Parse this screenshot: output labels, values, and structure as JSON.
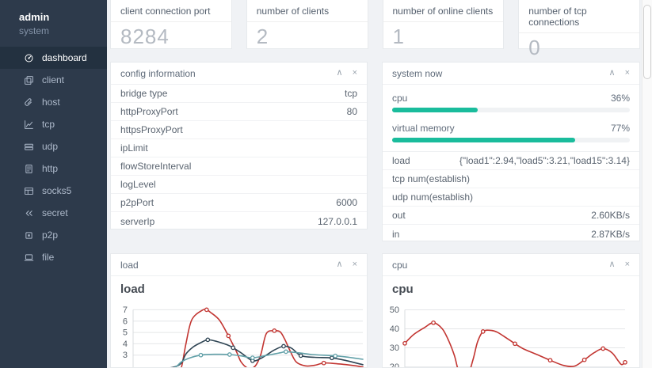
{
  "sidebar": {
    "user": {
      "name": "admin",
      "role": "system"
    },
    "items": [
      {
        "label": "dashboard",
        "icon": "dashboard-icon",
        "active": true
      },
      {
        "label": "client",
        "icon": "client-icon",
        "active": false
      },
      {
        "label": "host",
        "icon": "host-icon",
        "active": false
      },
      {
        "label": "tcp",
        "icon": "tcp-icon",
        "active": false
      },
      {
        "label": "udp",
        "icon": "udp-icon",
        "active": false
      },
      {
        "label": "http",
        "icon": "http-icon",
        "active": false
      },
      {
        "label": "socks5",
        "icon": "socks5-icon",
        "active": false
      },
      {
        "label": "secret",
        "icon": "secret-icon",
        "active": false
      },
      {
        "label": "p2p",
        "icon": "p2p-icon",
        "active": false
      },
      {
        "label": "file",
        "icon": "file-icon",
        "active": false
      }
    ]
  },
  "stat_cards": [
    {
      "label": "client connection port",
      "value": "8284"
    },
    {
      "label": "number of clients",
      "value": "2"
    },
    {
      "label": "number of online clients",
      "value": "1"
    },
    {
      "label": "number of tcp connections",
      "value": "0"
    }
  ],
  "icons": {
    "collapse": "∧",
    "close": "×"
  },
  "colors": {
    "accent_green": "#1abc9c",
    "chart_red": "#c23531",
    "chart_navy": "#2f4554",
    "chart_teal": "#61a0a8",
    "sidebar_bg": "#2d3a4b"
  },
  "panels": {
    "config": {
      "title": "config information",
      "rows": [
        {
          "label": "bridge type",
          "value": "tcp"
        },
        {
          "label": "httpProxyPort",
          "value": "80"
        },
        {
          "label": "httpsProxyPort",
          "value": ""
        },
        {
          "label": "ipLimit",
          "value": ""
        },
        {
          "label": "flowStoreInterval",
          "value": ""
        },
        {
          "label": "logLevel",
          "value": ""
        },
        {
          "label": "p2pPort",
          "value": "6000"
        },
        {
          "label": "serverIp",
          "value": "127.0.0.1"
        }
      ]
    },
    "system": {
      "title": "system now",
      "gauges": [
        {
          "label": "cpu",
          "percent": 36,
          "display": "36%"
        },
        {
          "label": "virtual memory",
          "percent": 77,
          "display": "77%"
        }
      ],
      "rows": [
        {
          "label": "load",
          "value": "{\"load1\":2.94,\"load5\":3.21,\"load15\":3.14}"
        },
        {
          "label": "tcp num(establish)",
          "value": ""
        },
        {
          "label": "udp num(establish)",
          "value": ""
        },
        {
          "label": "out",
          "value": "2.60KB/s"
        },
        {
          "label": "in",
          "value": "2.87KB/s"
        }
      ]
    },
    "load": {
      "title": "load",
      "chart_title": "load"
    },
    "cpu": {
      "title": "cpu",
      "chart_title": "cpu"
    }
  },
  "chart_data": [
    {
      "id": "load",
      "type": "line",
      "title": "load",
      "xlabel": "",
      "ylabel": "",
      "x_unit": "fraction-of-plot-width (x tick labels cut off below viewport)",
      "ylim": [
        1.79,
        7.52
      ],
      "yticks": [
        3,
        4,
        5,
        6,
        7
      ],
      "plot": [
        28,
        318
      ],
      "grid": true,
      "legend_visible": false,
      "series": [
        {
          "name": "load1",
          "color": "#c23531",
          "points": [
            [
              0,
              1.2
            ],
            [
              0.14,
              1.3
            ],
            [
              0.19,
              1.6
            ],
            [
              0.21,
              1.9
            ],
            [
              0.23,
              4.0
            ],
            [
              0.255,
              6.1
            ],
            [
              0.3,
              6.95
            ],
            [
              0.32,
              7.0
            ],
            [
              0.335,
              6.8
            ],
            [
              0.375,
              6.1
            ],
            [
              0.415,
              4.7
            ],
            [
              0.45,
              3.3
            ],
            [
              0.47,
              2.4
            ],
            [
              0.5,
              1.85
            ],
            [
              0.53,
              2.0
            ],
            [
              0.555,
              3.0
            ],
            [
              0.58,
              4.9
            ],
            [
              0.615,
              5.15
            ],
            [
              0.64,
              5.05
            ],
            [
              0.66,
              4.4
            ],
            [
              0.685,
              3.3
            ],
            [
              0.71,
              2.4
            ],
            [
              0.75,
              2.05
            ],
            [
              0.79,
              2.1
            ],
            [
              0.83,
              2.3
            ],
            [
              0.88,
              2.25
            ],
            [
              0.93,
              2.15
            ],
            [
              0.97,
              2.05
            ],
            [
              1,
              1.95
            ]
          ],
          "markers": [
            [
              0.32,
              7.0
            ],
            [
              0.415,
              4.7
            ],
            [
              0.615,
              5.15
            ],
            [
              0.83,
              2.3
            ]
          ]
        },
        {
          "name": "load5",
          "color": "#2f4554",
          "points": [
            [
              0,
              1.75
            ],
            [
              0.12,
              1.8
            ],
            [
              0.18,
              1.95
            ],
            [
              0.21,
              2.3
            ],
            [
              0.23,
              3.1
            ],
            [
              0.26,
              3.7
            ],
            [
              0.295,
              4.1
            ],
            [
              0.325,
              4.35
            ],
            [
              0.365,
              4.2
            ],
            [
              0.41,
              3.9
            ],
            [
              0.435,
              3.65
            ],
            [
              0.47,
              3.2
            ],
            [
              0.52,
              2.5
            ],
            [
              0.555,
              2.7
            ],
            [
              0.58,
              3.0
            ],
            [
              0.615,
              3.45
            ],
            [
              0.655,
              3.78
            ],
            [
              0.69,
              3.6
            ],
            [
              0.73,
              2.95
            ],
            [
              0.79,
              2.8
            ],
            [
              0.865,
              2.75
            ],
            [
              0.93,
              2.5
            ],
            [
              1,
              2.15
            ]
          ],
          "markers": [
            [
              0.325,
              4.35
            ],
            [
              0.435,
              3.65
            ],
            [
              0.52,
              2.5
            ],
            [
              0.655,
              3.78
            ],
            [
              0.73,
              2.95
            ],
            [
              0.865,
              2.75
            ]
          ]
        },
        {
          "name": "load15",
          "color": "#61a0a8",
          "points": [
            [
              0,
              1.7
            ],
            [
              0.12,
              1.75
            ],
            [
              0.18,
              1.9
            ],
            [
              0.21,
              2.4
            ],
            [
              0.24,
              2.7
            ],
            [
              0.295,
              3.0
            ],
            [
              0.36,
              3.07
            ],
            [
              0.42,
              3.05
            ],
            [
              0.47,
              2.93
            ],
            [
              0.52,
              2.76
            ],
            [
              0.58,
              2.97
            ],
            [
              0.64,
              3.2
            ],
            [
              0.665,
              3.3
            ],
            [
              0.72,
              3.2
            ],
            [
              0.78,
              3.05
            ],
            [
              0.88,
              2.93
            ],
            [
              0.94,
              2.8
            ],
            [
              1,
              2.63
            ]
          ],
          "markers": [
            [
              0.295,
              3.0
            ],
            [
              0.42,
              3.05
            ],
            [
              0.52,
              2.76
            ],
            [
              0.665,
              3.3
            ],
            [
              0.88,
              2.93
            ]
          ]
        }
      ]
    },
    {
      "id": "cpu",
      "type": "line",
      "title": "cpu",
      "xlabel": "",
      "ylabel": "",
      "x_unit": "fraction-of-plot-width (x tick labels cut off below viewport)",
      "ylim": [
        19.0,
        53.1
      ],
      "yticks": [
        20,
        30,
        40,
        50
      ],
      "plot": [
        28,
        306
      ],
      "grid": true,
      "legend_visible": false,
      "series": [
        {
          "name": "cpu",
          "color": "#c23531",
          "points": [
            [
              0,
              32.4
            ],
            [
              0.04,
              37
            ],
            [
              0.09,
              40.7
            ],
            [
              0.13,
              43.2
            ],
            [
              0.17,
              40
            ],
            [
              0.2,
              33.5
            ],
            [
              0.225,
              26
            ],
            [
              0.25,
              16
            ],
            [
              0.285,
              15.5
            ],
            [
              0.31,
              24
            ],
            [
              0.33,
              33
            ],
            [
              0.355,
              38.6
            ],
            [
              0.39,
              39.2
            ],
            [
              0.42,
              38.2
            ],
            [
              0.47,
              34.5
            ],
            [
              0.5,
              32.2
            ],
            [
              0.54,
              29.4
            ],
            [
              0.6,
              26.5
            ],
            [
              0.66,
              23.5
            ],
            [
              0.72,
              20.8
            ],
            [
              0.77,
              20.4
            ],
            [
              0.815,
              23.7
            ],
            [
              0.86,
              27.5
            ],
            [
              0.9,
              29.6
            ],
            [
              0.94,
              27.5
            ],
            [
              0.97,
              23
            ],
            [
              0.985,
              21.2
            ],
            [
              1,
              22.4
            ]
          ],
          "markers": [
            [
              0,
              32.4
            ],
            [
              0.13,
              43.2
            ],
            [
              0.355,
              38.6
            ],
            [
              0.5,
              32.2
            ],
            [
              0.66,
              23.5
            ],
            [
              0.815,
              23.7
            ],
            [
              0.9,
              29.6
            ],
            [
              1,
              22.4
            ]
          ]
        }
      ]
    }
  ]
}
